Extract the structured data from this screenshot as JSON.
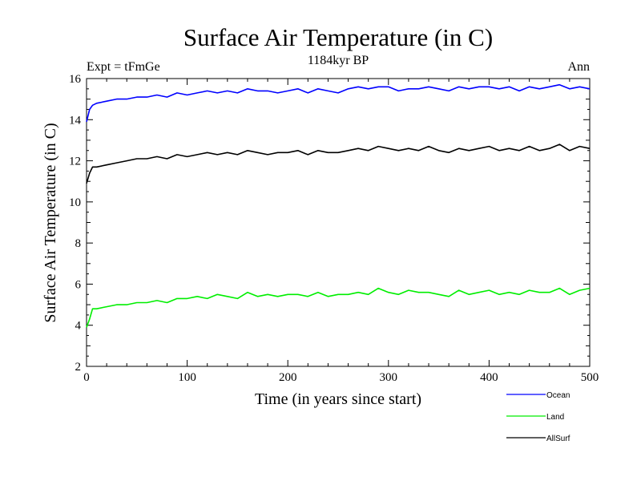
{
  "chart_data": {
    "type": "line",
    "title": "Surface Air Temperature (in C)",
    "subtitle": "1184kyr BP",
    "left_label": "Expt = tFmGe",
    "right_label": "Ann",
    "xlabel": "Time (in years since start)",
    "ylabel": "Surface Air Temperature (in C)",
    "xlim": [
      0,
      500
    ],
    "ylim": [
      2,
      16
    ],
    "xticks": [
      0,
      100,
      200,
      300,
      400,
      500
    ],
    "yticks": [
      2,
      4,
      6,
      8,
      10,
      12,
      14,
      16
    ],
    "grid": false,
    "legend_position": "bottom-right-outside",
    "x": [
      0,
      3,
      6,
      10,
      20,
      30,
      40,
      50,
      60,
      70,
      80,
      90,
      100,
      110,
      120,
      130,
      140,
      150,
      160,
      170,
      180,
      190,
      200,
      210,
      220,
      230,
      240,
      250,
      260,
      270,
      280,
      290,
      300,
      310,
      320,
      330,
      340,
      350,
      360,
      370,
      380,
      390,
      400,
      410,
      420,
      430,
      440,
      450,
      460,
      470,
      480,
      490,
      500
    ],
    "series": [
      {
        "name": "Ocean",
        "color": "#0000ff",
        "values": [
          13.9,
          14.5,
          14.7,
          14.8,
          14.9,
          15.0,
          15.0,
          15.1,
          15.1,
          15.2,
          15.1,
          15.3,
          15.2,
          15.3,
          15.4,
          15.3,
          15.4,
          15.3,
          15.5,
          15.4,
          15.4,
          15.3,
          15.4,
          15.5,
          15.3,
          15.5,
          15.4,
          15.3,
          15.5,
          15.6,
          15.5,
          15.6,
          15.6,
          15.4,
          15.5,
          15.5,
          15.6,
          15.5,
          15.4,
          15.6,
          15.5,
          15.6,
          15.6,
          15.5,
          15.6,
          15.4,
          15.6,
          15.5,
          15.6,
          15.7,
          15.5,
          15.6,
          15.5
        ]
      },
      {
        "name": "Land",
        "color": "#00ee00",
        "values": [
          3.9,
          4.3,
          4.8,
          4.8,
          4.9,
          5.0,
          5.0,
          5.1,
          5.1,
          5.2,
          5.1,
          5.3,
          5.3,
          5.4,
          5.3,
          5.5,
          5.4,
          5.3,
          5.6,
          5.4,
          5.5,
          5.4,
          5.5,
          5.5,
          5.4,
          5.6,
          5.4,
          5.5,
          5.5,
          5.6,
          5.5,
          5.8,
          5.6,
          5.5,
          5.7,
          5.6,
          5.6,
          5.5,
          5.4,
          5.7,
          5.5,
          5.6,
          5.7,
          5.5,
          5.6,
          5.5,
          5.7,
          5.6,
          5.6,
          5.8,
          5.5,
          5.7,
          5.8
        ]
      },
      {
        "name": "AllSurf",
        "color": "#000000",
        "values": [
          10.9,
          11.4,
          11.7,
          11.7,
          11.8,
          11.9,
          12.0,
          12.1,
          12.1,
          12.2,
          12.1,
          12.3,
          12.2,
          12.3,
          12.4,
          12.3,
          12.4,
          12.3,
          12.5,
          12.4,
          12.3,
          12.4,
          12.4,
          12.5,
          12.3,
          12.5,
          12.4,
          12.4,
          12.5,
          12.6,
          12.5,
          12.7,
          12.6,
          12.5,
          12.6,
          12.5,
          12.7,
          12.5,
          12.4,
          12.6,
          12.5,
          12.6,
          12.7,
          12.5,
          12.6,
          12.5,
          12.7,
          12.5,
          12.6,
          12.8,
          12.5,
          12.7,
          12.6
        ]
      }
    ]
  }
}
